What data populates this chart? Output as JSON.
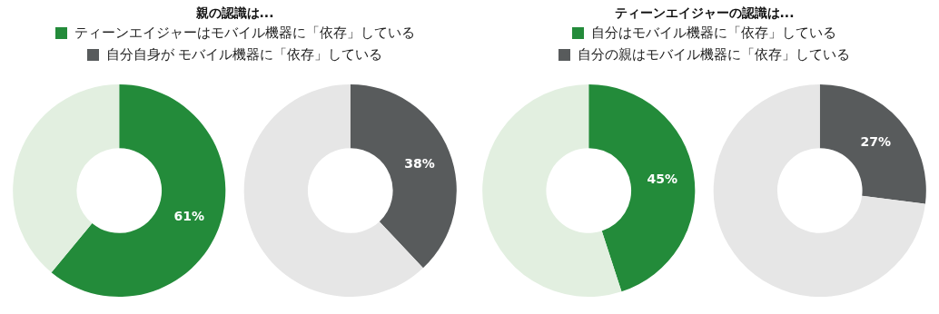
{
  "chart_data": [
    {
      "type": "donut",
      "title": "親の認識は...",
      "legend": "top",
      "categories": [
        null,
        null
      ],
      "series": [
        {
          "name": "ティーンエイジャーはモバイル機器に「依存」している",
          "values": [
            61,
            39
          ],
          "colors": [
            "#238b3a",
            "#e2efe0"
          ],
          "value_labels": [
            "61%",
            null
          ]
        },
        {
          "name": "自分自身が モバイル機器に「依存」している",
          "values": [
            38,
            62
          ],
          "colors": [
            "#585b5c",
            "#e6e6e6"
          ],
          "value_labels": [
            "38%",
            null
          ]
        }
      ]
    },
    {
      "type": "donut",
      "title": "ティーンエイジャーの認識は...",
      "legend": "top",
      "categories": [
        null,
        null
      ],
      "series": [
        {
          "name": "自分はモバイル機器に「依存」している",
          "values": [
            45,
            55
          ],
          "colors": [
            "#238b3a",
            "#e2efe0"
          ],
          "value_labels": [
            "45%",
            null
          ]
        },
        {
          "name": "自分の親はモバイル機器に「依存」している",
          "values": [
            27,
            73
          ],
          "colors": [
            "#585b5c",
            "#e6e6e6"
          ],
          "value_labels": [
            "27%",
            null
          ]
        }
      ]
    }
  ]
}
